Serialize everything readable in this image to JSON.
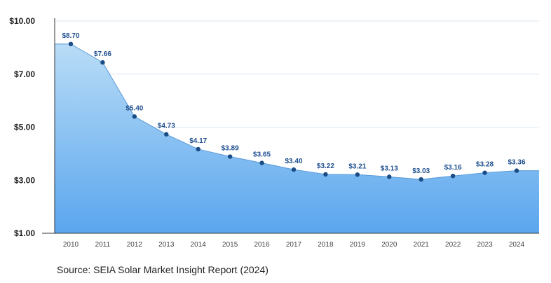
{
  "chart_data": {
    "type": "area",
    "x": [
      "2010",
      "2011",
      "2012",
      "2013",
      "2014",
      "2015",
      "2016",
      "2017",
      "2018",
      "2019",
      "2020",
      "2021",
      "2022",
      "2023",
      "2024"
    ],
    "values": [
      8.7,
      7.66,
      5.4,
      4.73,
      4.17,
      3.89,
      3.65,
      3.4,
      3.22,
      3.21,
      3.13,
      3.03,
      3.16,
      3.28,
      3.36
    ],
    "data_labels": [
      "$8.70",
      "$7.66",
      "$5.40",
      "$4.73",
      "$4.17",
      "$3.89",
      "$3.65",
      "$3.40",
      "$3.22",
      "$3.21",
      "$3.13",
      "$3.03",
      "$3.16",
      "$3.28",
      "$3.36"
    ],
    "yticks": [
      1,
      3,
      5,
      7,
      10
    ],
    "ytick_labels": [
      "$1.00",
      "$3.00",
      "$5.00",
      "$7.00",
      "$10.00"
    ],
    "ylim": [
      1,
      10
    ],
    "grid": true,
    "legend": "none",
    "title": "",
    "xlabel": "",
    "ylabel": "",
    "colors": {
      "area_top": "#b9dcf6",
      "area_bottom": "#5aa6ee",
      "line": "#5a9bd8",
      "marker": "#1a4c86",
      "label": "#1f4f8f",
      "grid": "#d9e6f0",
      "axis": "#333333"
    }
  },
  "footer": {
    "source": "Source: SEIA Solar Market Insight Report (2024)"
  }
}
